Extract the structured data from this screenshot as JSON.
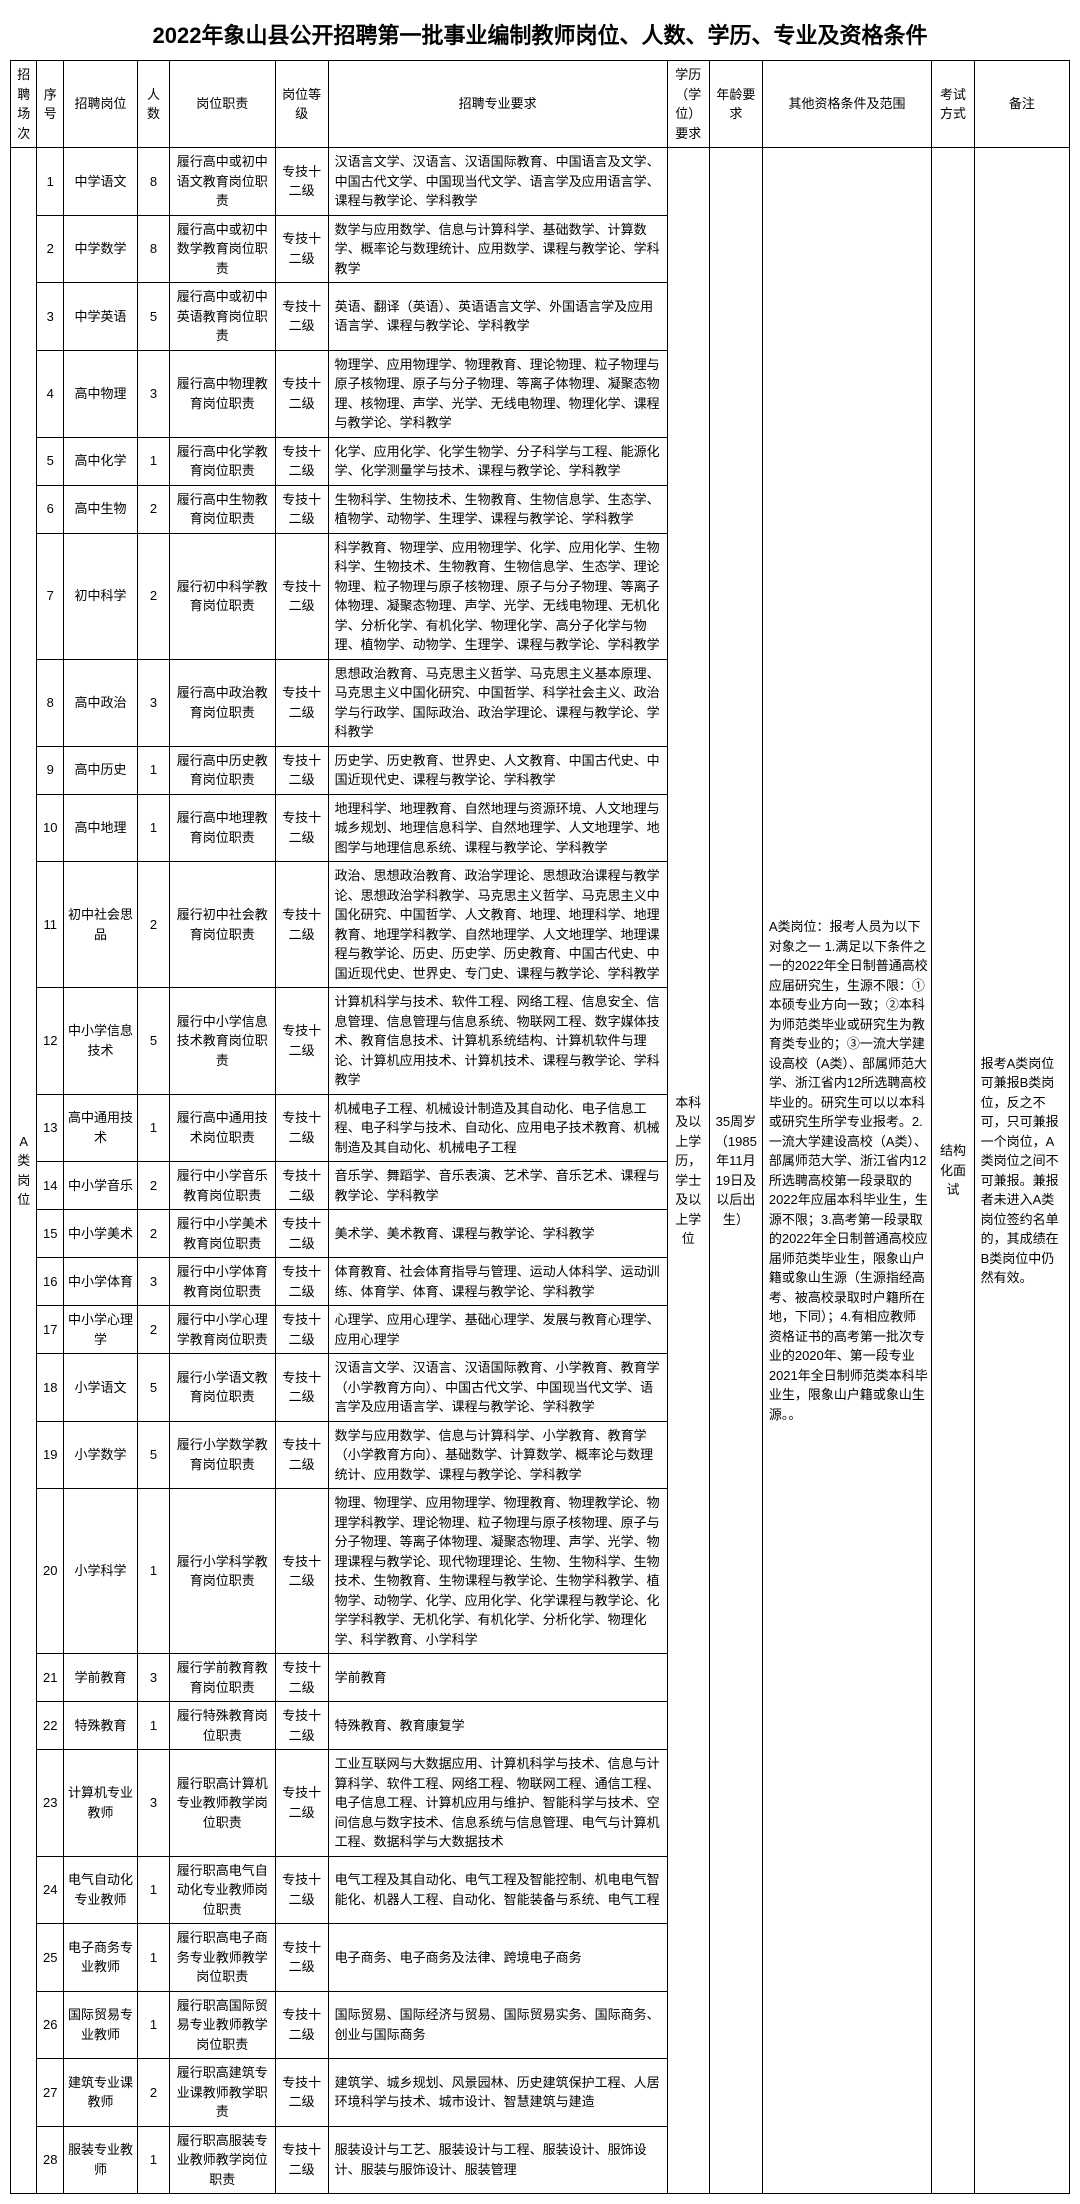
{
  "title": "2022年象山县公开招聘第一批事业编制教师岗位、人数、学历、专业及资格条件",
  "headers": {
    "category": "招聘场次",
    "seq": "序号",
    "position": "招聘岗位",
    "num": "人数",
    "duty": "岗位职责",
    "level": "岗位等级",
    "major": "招聘专业要求",
    "edu": "学历（学位）要求",
    "age": "年龄要求",
    "other": "其他资格条件及范围",
    "exam": "考试方式",
    "remark": "备注"
  },
  "category_label": "A类岗位",
  "edu_req": "本科及以上学历，学士及以上学位",
  "age_req": "35周岁（1985年11月19日及以后出生）",
  "other_req": "A类岗位：报考人员为以下对象之一 1.满足以下条件之一的2022年全日制普通高校应届研究生，生源不限：①本硕专业方向一致；②本科为师范类毕业或研究生为教育类专业的；③一流大学建设高校（A类）、部属师范大学、浙江省内12所选聘高校毕业的。研究生可以以本科或研究生所学专业报考。2.一流大学建设高校（A类）、部属师范大学、浙江省内12所选聘高校第一段录取的2022年应届本科毕业生，生源不限；3.高考第一段录取的2022年全日制普通高校应届师范类毕业生，限象山户籍或象山生源（生源指经高考、被高校录取时户籍所在地，下同）；4.有相应教师资格证书的高考第一批次专业的2020年、第一段专业2021年全日制师范类本科毕业生，限象山户籍或象山生源。。",
  "exam_method": "结构化面试",
  "remark_text": "报考A类岗位可兼报B类岗位，反之不可，只可兼报一个岗位，A类岗位之间不可兼报。兼报者未进入A类岗位签约名单的，其成绩在B类岗位中仍然有效。",
  "level_text": "专技十二级",
  "rows": [
    {
      "seq": "1",
      "pos": "中学语文",
      "num": "8",
      "duty": "履行高中或初中语文教育岗位职责",
      "major": "汉语言文学、汉语言、汉语国际教育、中国语言及文学、中国古代文学、中国现当代文学、语言学及应用语言学、课程与教学论、学科教学"
    },
    {
      "seq": "2",
      "pos": "中学数学",
      "num": "8",
      "duty": "履行高中或初中数学教育岗位职责",
      "major": "数学与应用数学、信息与计算科学、基础数学、计算数学、概率论与数理统计、应用数学、课程与教学论、学科教学"
    },
    {
      "seq": "3",
      "pos": "中学英语",
      "num": "5",
      "duty": "履行高中或初中英语教育岗位职责",
      "major": "英语、翻译（英语）、英语语言文学、外国语言学及应用语言学、课程与教学论、学科教学"
    },
    {
      "seq": "4",
      "pos": "高中物理",
      "num": "3",
      "duty": "履行高中物理教育岗位职责",
      "major": "物理学、应用物理学、物理教育、理论物理、粒子物理与原子核物理、原子与分子物理、等离子体物理、凝聚态物理、核物理、声学、光学、无线电物理、物理化学、课程与教学论、学科教学"
    },
    {
      "seq": "5",
      "pos": "高中化学",
      "num": "1",
      "duty": "履行高中化学教育岗位职责",
      "major": "化学、应用化学、化学生物学、分子科学与工程、能源化学、化学测量学与技术、课程与教学论、学科教学"
    },
    {
      "seq": "6",
      "pos": "高中生物",
      "num": "2",
      "duty": "履行高中生物教育岗位职责",
      "major": "生物科学、生物技术、生物教育、生物信息学、生态学、植物学、动物学、生理学、课程与教学论、学科教学"
    },
    {
      "seq": "7",
      "pos": "初中科学",
      "num": "2",
      "duty": "履行初中科学教育岗位职责",
      "major": "科学教育、物理学、应用物理学、化学、应用化学、生物科学、生物技术、生物教育、生物信息学、生态学、理论物理、粒子物理与原子核物理、原子与分子物理、等离子体物理、凝聚态物理、声学、光学、无线电物理、无机化学、分析化学、有机化学、物理化学、高分子化学与物理、植物学、动物学、生理学、课程与教学论、学科教学"
    },
    {
      "seq": "8",
      "pos": "高中政治",
      "num": "3",
      "duty": "履行高中政治教育岗位职责",
      "major": "思想政治教育、马克思主义哲学、马克思主义基本原理、马克思主义中国化研究、中国哲学、科学社会主义、政治学与行政学、国际政治、政治学理论、课程与教学论、学科教学"
    },
    {
      "seq": "9",
      "pos": "高中历史",
      "num": "1",
      "duty": "履行高中历史教育岗位职责",
      "major": "历史学、历史教育、世界史、人文教育、中国古代史、中国近现代史、课程与教学论、学科教学"
    },
    {
      "seq": "10",
      "pos": "高中地理",
      "num": "1",
      "duty": "履行高中地理教育岗位职责",
      "major": "地理科学、地理教育、自然地理与资源环境、人文地理与城乡规划、地理信息科学、自然地理学、人文地理学、地图学与地理信息系统、课程与教学论、学科教学"
    },
    {
      "seq": "11",
      "pos": "初中社会思品",
      "num": "2",
      "duty": "履行初中社会教育岗位职责",
      "major": "政治、思想政治教育、政治学理论、思想政治课程与教学论、思想政治学科教学、马克思主义哲学、马克思主义中国化研究、中国哲学、人文教育、地理、地理科学、地理教育、地理学科教学、自然地理学、人文地理学、地理课程与教学论、历史、历史学、历史教育、中国古代史、中国近现代史、世界史、专门史、课程与教学论、学科教学"
    },
    {
      "seq": "12",
      "pos": "中小学信息技术",
      "num": "5",
      "duty": "履行中小学信息技术教育岗位职责",
      "major": "计算机科学与技术、软件工程、网络工程、信息安全、信息管理、信息管理与信息系统、物联网工程、数字媒体技术、教育信息技术、计算机系统结构、计算机软件与理论、计算机应用技术、计算机技术、课程与教学论、学科教学"
    },
    {
      "seq": "13",
      "pos": "高中通用技术",
      "num": "1",
      "duty": "履行高中通用技术岗位职责",
      "major": "机械电子工程、机械设计制造及其自动化、电子信息工程、电子科学与技术、自动化、应用电子技术教育、机械制造及其自动化、机械电子工程"
    },
    {
      "seq": "14",
      "pos": "中小学音乐",
      "num": "2",
      "duty": "履行中小学音乐教育岗位职责",
      "major": "音乐学、舞蹈学、音乐表演、艺术学、音乐艺术、课程与教学论、学科教学"
    },
    {
      "seq": "15",
      "pos": "中小学美术",
      "num": "2",
      "duty": "履行中小学美术教育岗位职责",
      "major": "美术学、美术教育、课程与教学论、学科教学"
    },
    {
      "seq": "16",
      "pos": "中小学体育",
      "num": "3",
      "duty": "履行中小学体育教育岗位职责",
      "major": "体育教育、社会体育指导与管理、运动人体科学、运动训练、体育学、体育、课程与教学论、学科教学"
    },
    {
      "seq": "17",
      "pos": "中小学心理学",
      "num": "2",
      "duty": "履行中小学心理学教育岗位职责",
      "major": "心理学、应用心理学、基础心理学、发展与教育心理学、应用心理学"
    },
    {
      "seq": "18",
      "pos": "小学语文",
      "num": "5",
      "duty": "履行小学语文教育岗位职责",
      "major": "汉语言文学、汉语言、汉语国际教育、小学教育、教育学（小学教育方向）、中国古代文学、中国现当代文学、语言学及应用语言学、课程与教学论、学科教学"
    },
    {
      "seq": "19",
      "pos": "小学数学",
      "num": "5",
      "duty": "履行小学数学教育岗位职责",
      "major": "数学与应用数学、信息与计算科学、小学教育、教育学（小学教育方向）、基础数学、计算数学、概率论与数理统计、应用数学、课程与教学论、学科教学"
    },
    {
      "seq": "20",
      "pos": "小学科学",
      "num": "1",
      "duty": "履行小学科学教育岗位职责",
      "major": "物理、物理学、应用物理学、物理教育、物理教学论、物理学科教学、理论物理、粒子物理与原子核物理、原子与分子物理、等离子体物理、凝聚态物理、声学、光学、物理课程与教学论、现代物理理论、生物、生物科学、生物技术、生物教育、生物课程与教学论、生物学科教学、植物学、动物学、化学、应用化学、化学课程与教学论、化学学科教学、无机化学、有机化学、分析化学、物理化学、科学教育、小学科学"
    },
    {
      "seq": "21",
      "pos": "学前教育",
      "num": "3",
      "duty": "履行学前教育教育岗位职责",
      "major": "学前教育"
    },
    {
      "seq": "22",
      "pos": "特殊教育",
      "num": "1",
      "duty": "履行特殊教育岗位职责",
      "major": "特殊教育、教育康复学"
    },
    {
      "seq": "23",
      "pos": "计算机专业教师",
      "num": "3",
      "duty": "履行职高计算机专业教师教学岗位职责",
      "major": "工业互联网与大数据应用、计算机科学与技术、信息与计算科学、软件工程、网络工程、物联网工程、通信工程、电子信息工程、计算机应用与维护、智能科学与技术、空间信息与数字技术、信息系统与信息管理、电气与计算机工程、数据科学与大数据技术"
    },
    {
      "seq": "24",
      "pos": "电气自动化专业教师",
      "num": "1",
      "duty": "履行职高电气自动化专业教师岗位职责",
      "major": "电气工程及其自动化、电气工程及智能控制、机电电气智能化、机器人工程、自动化、智能装备与系统、电气工程"
    },
    {
      "seq": "25",
      "pos": "电子商务专业教师",
      "num": "1",
      "duty": "履行职高电子商务专业教师教学岗位职责",
      "major": "电子商务、电子商务及法律、跨境电子商务"
    },
    {
      "seq": "26",
      "pos": "国际贸易专业教师",
      "num": "1",
      "duty": "履行职高国际贸易专业教师教学岗位职责",
      "major": "国际贸易、国际经济与贸易、国际贸易实务、国际商务、创业与国际商务"
    },
    {
      "seq": "27",
      "pos": "建筑专业课教师",
      "num": "2",
      "duty": "履行职高建筑专业课教师教学职责",
      "major": "建筑学、城乡规划、风景园林、历史建筑保护工程、人居环境科学与技术、城市设计、智慧建筑与建造"
    },
    {
      "seq": "28",
      "pos": "服装专业教师",
      "num": "1",
      "duty": "履行职高服装专业教师教学岗位职责",
      "major": "服装设计与工艺、服装设计与工程、服装设计、服饰设计、服装与服饰设计、服装管理"
    }
  ]
}
